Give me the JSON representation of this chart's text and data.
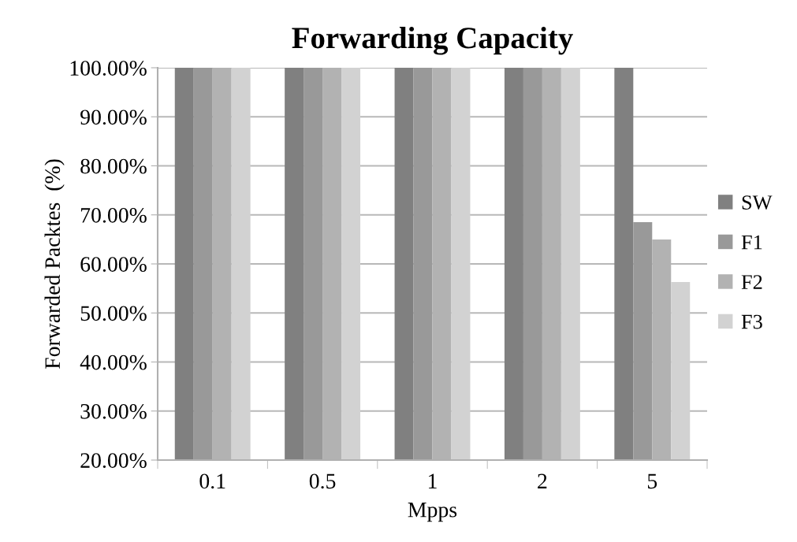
{
  "chart_data": {
    "type": "bar",
    "title": "Forwarding Capacity",
    "xlabel": "Mpps",
    "ylabel": "Forwarded Packtes  (%)",
    "categories": [
      "0.1",
      "0.5",
      "1",
      "2",
      "5"
    ],
    "series": [
      {
        "name": "SW",
        "color": "#808080",
        "values": [
          100,
          100,
          100,
          100,
          100
        ]
      },
      {
        "name": "F1",
        "color": "#999999",
        "values": [
          100,
          100,
          100,
          100,
          68.5
        ]
      },
      {
        "name": "F2",
        "color": "#b2b2b2",
        "values": [
          100,
          100,
          100,
          100,
          65
        ]
      },
      {
        "name": "F3",
        "color": "#d2d2d2",
        "values": [
          100,
          100,
          100,
          100,
          56.3
        ]
      }
    ],
    "ylim": [
      20,
      100
    ],
    "yticks": [
      {
        "value": 20,
        "label": "20.00%"
      },
      {
        "value": 30,
        "label": "30.00%"
      },
      {
        "value": 40,
        "label": "40.00%"
      },
      {
        "value": 50,
        "label": "50.00%"
      },
      {
        "value": 60,
        "label": "60.00%"
      },
      {
        "value": 70,
        "label": "70.00%"
      },
      {
        "value": 80,
        "label": "80.00%"
      },
      {
        "value": 90,
        "label": "90.00%"
      },
      {
        "value": 100,
        "label": "100.00%"
      }
    ],
    "grid": "y",
    "legend": "right"
  }
}
